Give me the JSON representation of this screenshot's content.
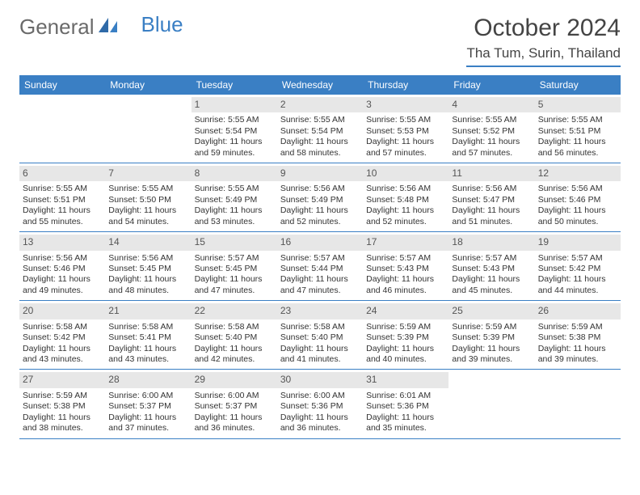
{
  "logo": {
    "text1": "General",
    "text2": "Blue"
  },
  "title": "October 2024",
  "location": "Tha Tum, Surin, Thailand",
  "colors": {
    "accent": "#3a7fc4",
    "strip": "#e7e7e7",
    "text": "#333333",
    "bg": "#ffffff"
  },
  "dow": [
    "Sunday",
    "Monday",
    "Tuesday",
    "Wednesday",
    "Thursday",
    "Friday",
    "Saturday"
  ],
  "weeks": [
    [
      null,
      null,
      {
        "n": "1",
        "sr": "Sunrise: 5:55 AM",
        "ss": "Sunset: 5:54 PM",
        "d1": "Daylight: 11 hours",
        "d2": "and 59 minutes."
      },
      {
        "n": "2",
        "sr": "Sunrise: 5:55 AM",
        "ss": "Sunset: 5:54 PM",
        "d1": "Daylight: 11 hours",
        "d2": "and 58 minutes."
      },
      {
        "n": "3",
        "sr": "Sunrise: 5:55 AM",
        "ss": "Sunset: 5:53 PM",
        "d1": "Daylight: 11 hours",
        "d2": "and 57 minutes."
      },
      {
        "n": "4",
        "sr": "Sunrise: 5:55 AM",
        "ss": "Sunset: 5:52 PM",
        "d1": "Daylight: 11 hours",
        "d2": "and 57 minutes."
      },
      {
        "n": "5",
        "sr": "Sunrise: 5:55 AM",
        "ss": "Sunset: 5:51 PM",
        "d1": "Daylight: 11 hours",
        "d2": "and 56 minutes."
      }
    ],
    [
      {
        "n": "6",
        "sr": "Sunrise: 5:55 AM",
        "ss": "Sunset: 5:51 PM",
        "d1": "Daylight: 11 hours",
        "d2": "and 55 minutes."
      },
      {
        "n": "7",
        "sr": "Sunrise: 5:55 AM",
        "ss": "Sunset: 5:50 PM",
        "d1": "Daylight: 11 hours",
        "d2": "and 54 minutes."
      },
      {
        "n": "8",
        "sr": "Sunrise: 5:55 AM",
        "ss": "Sunset: 5:49 PM",
        "d1": "Daylight: 11 hours",
        "d2": "and 53 minutes."
      },
      {
        "n": "9",
        "sr": "Sunrise: 5:56 AM",
        "ss": "Sunset: 5:49 PM",
        "d1": "Daylight: 11 hours",
        "d2": "and 52 minutes."
      },
      {
        "n": "10",
        "sr": "Sunrise: 5:56 AM",
        "ss": "Sunset: 5:48 PM",
        "d1": "Daylight: 11 hours",
        "d2": "and 52 minutes."
      },
      {
        "n": "11",
        "sr": "Sunrise: 5:56 AM",
        "ss": "Sunset: 5:47 PM",
        "d1": "Daylight: 11 hours",
        "d2": "and 51 minutes."
      },
      {
        "n": "12",
        "sr": "Sunrise: 5:56 AM",
        "ss": "Sunset: 5:46 PM",
        "d1": "Daylight: 11 hours",
        "d2": "and 50 minutes."
      }
    ],
    [
      {
        "n": "13",
        "sr": "Sunrise: 5:56 AM",
        "ss": "Sunset: 5:46 PM",
        "d1": "Daylight: 11 hours",
        "d2": "and 49 minutes."
      },
      {
        "n": "14",
        "sr": "Sunrise: 5:56 AM",
        "ss": "Sunset: 5:45 PM",
        "d1": "Daylight: 11 hours",
        "d2": "and 48 minutes."
      },
      {
        "n": "15",
        "sr": "Sunrise: 5:57 AM",
        "ss": "Sunset: 5:45 PM",
        "d1": "Daylight: 11 hours",
        "d2": "and 47 minutes."
      },
      {
        "n": "16",
        "sr": "Sunrise: 5:57 AM",
        "ss": "Sunset: 5:44 PM",
        "d1": "Daylight: 11 hours",
        "d2": "and 47 minutes."
      },
      {
        "n": "17",
        "sr": "Sunrise: 5:57 AM",
        "ss": "Sunset: 5:43 PM",
        "d1": "Daylight: 11 hours",
        "d2": "and 46 minutes."
      },
      {
        "n": "18",
        "sr": "Sunrise: 5:57 AM",
        "ss": "Sunset: 5:43 PM",
        "d1": "Daylight: 11 hours",
        "d2": "and 45 minutes."
      },
      {
        "n": "19",
        "sr": "Sunrise: 5:57 AM",
        "ss": "Sunset: 5:42 PM",
        "d1": "Daylight: 11 hours",
        "d2": "and 44 minutes."
      }
    ],
    [
      {
        "n": "20",
        "sr": "Sunrise: 5:58 AM",
        "ss": "Sunset: 5:42 PM",
        "d1": "Daylight: 11 hours",
        "d2": "and 43 minutes."
      },
      {
        "n": "21",
        "sr": "Sunrise: 5:58 AM",
        "ss": "Sunset: 5:41 PM",
        "d1": "Daylight: 11 hours",
        "d2": "and 43 minutes."
      },
      {
        "n": "22",
        "sr": "Sunrise: 5:58 AM",
        "ss": "Sunset: 5:40 PM",
        "d1": "Daylight: 11 hours",
        "d2": "and 42 minutes."
      },
      {
        "n": "23",
        "sr": "Sunrise: 5:58 AM",
        "ss": "Sunset: 5:40 PM",
        "d1": "Daylight: 11 hours",
        "d2": "and 41 minutes."
      },
      {
        "n": "24",
        "sr": "Sunrise: 5:59 AM",
        "ss": "Sunset: 5:39 PM",
        "d1": "Daylight: 11 hours",
        "d2": "and 40 minutes."
      },
      {
        "n": "25",
        "sr": "Sunrise: 5:59 AM",
        "ss": "Sunset: 5:39 PM",
        "d1": "Daylight: 11 hours",
        "d2": "and 39 minutes."
      },
      {
        "n": "26",
        "sr": "Sunrise: 5:59 AM",
        "ss": "Sunset: 5:38 PM",
        "d1": "Daylight: 11 hours",
        "d2": "and 39 minutes."
      }
    ],
    [
      {
        "n": "27",
        "sr": "Sunrise: 5:59 AM",
        "ss": "Sunset: 5:38 PM",
        "d1": "Daylight: 11 hours",
        "d2": "and 38 minutes."
      },
      {
        "n": "28",
        "sr": "Sunrise: 6:00 AM",
        "ss": "Sunset: 5:37 PM",
        "d1": "Daylight: 11 hours",
        "d2": "and 37 minutes."
      },
      {
        "n": "29",
        "sr": "Sunrise: 6:00 AM",
        "ss": "Sunset: 5:37 PM",
        "d1": "Daylight: 11 hours",
        "d2": "and 36 minutes."
      },
      {
        "n": "30",
        "sr": "Sunrise: 6:00 AM",
        "ss": "Sunset: 5:36 PM",
        "d1": "Daylight: 11 hours",
        "d2": "and 36 minutes."
      },
      {
        "n": "31",
        "sr": "Sunrise: 6:01 AM",
        "ss": "Sunset: 5:36 PM",
        "d1": "Daylight: 11 hours",
        "d2": "and 35 minutes."
      },
      null,
      null
    ]
  ]
}
